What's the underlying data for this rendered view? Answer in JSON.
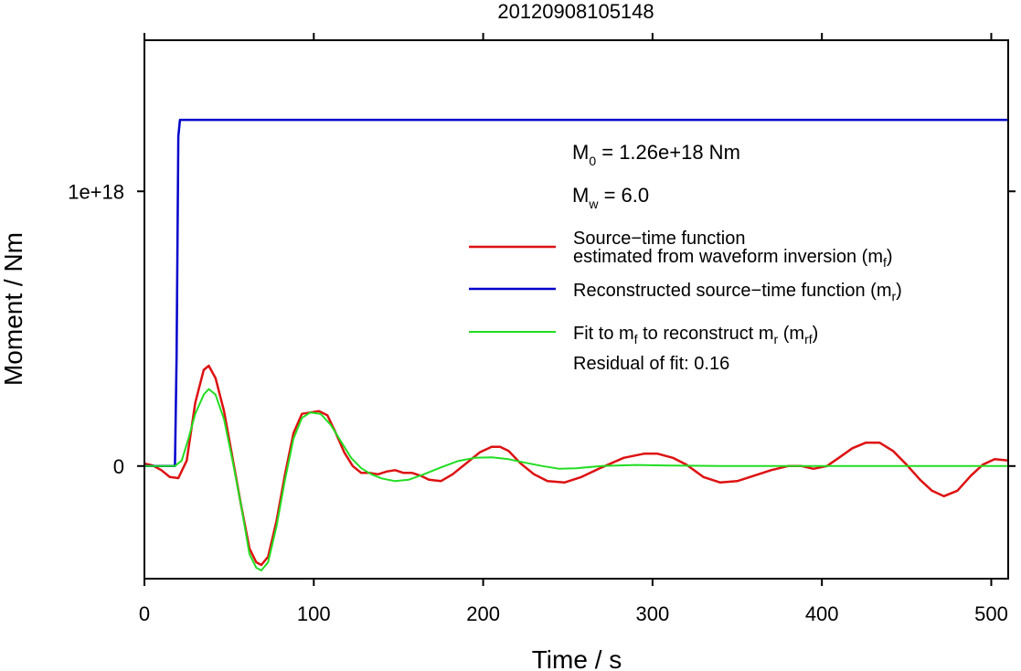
{
  "chart_data": {
    "type": "line",
    "title": "20120908105148",
    "xlabel": "Time / s",
    "ylabel": "Moment / Nm",
    "xlim": [
      0,
      510
    ],
    "ylim": [
      -4.1e+17,
      1.55e+18
    ],
    "x_ticks": [
      0,
      100,
      200,
      300,
      400,
      500
    ],
    "x_tick_labels": [
      "0",
      "100",
      "200",
      "300",
      "400",
      "500"
    ],
    "y_ticks": [
      0,
      1e+18
    ],
    "y_tick_labels": [
      "0",
      "1e+18"
    ],
    "grid": false,
    "annotations": {
      "m0": {
        "base": "M",
        "sub": "0",
        "text": " = 1.26e+18 Nm"
      },
      "mw": {
        "base": "M",
        "sub": "w",
        "text": " = 6.0"
      },
      "residual": "Residual of fit: 0.16"
    },
    "legend": {
      "placement": "right",
      "entries": [
        {
          "color": "#dd1111",
          "line1": "Source−time function",
          "line2": "estimated from waveform inversion (m",
          "sub": "f",
          "tail": ")"
        },
        {
          "color": "#0000cc",
          "line1": "Reconstructed source−time function (m",
          "sub": "r",
          "tail": ")"
        },
        {
          "color": "#22dd22",
          "line1": "Fit to m",
          "sub": "f",
          "mid": " to reconstruct m",
          "sub2": "r",
          "mid2": " (m",
          "sub3": "rf",
          "tail": ")"
        }
      ]
    },
    "series": [
      {
        "color": "#dd1111",
        "x": [
          0,
          5,
          10,
          15,
          20,
          25,
          30,
          35,
          38,
          42,
          47,
          52,
          57,
          62,
          66,
          69,
          73,
          78,
          83,
          88,
          93,
          98,
          103,
          108,
          113,
          118,
          123,
          128,
          133,
          138,
          143,
          148,
          153,
          158,
          163,
          168,
          175,
          182,
          190,
          198,
          205,
          210,
          215,
          222,
          230,
          238,
          248,
          258,
          270,
          283,
          295,
          303,
          312,
          320,
          330,
          340,
          350,
          360,
          370,
          380,
          388,
          395,
          403,
          410,
          418,
          426,
          434,
          442,
          450,
          458,
          465,
          472,
          480,
          488,
          495,
          502,
          510
        ],
        "y": [
          9000000000000000.0,
          2000000000000000.0,
          -1.5e+16,
          -4e+16,
          -4.4e+16,
          2e+16,
          2.3e+17,
          3.5e+17,
          3.65e+17,
          3.2e+17,
          2e+17,
          3e+16,
          -1.4e+17,
          -3e+17,
          -3.5e+17,
          -3.6e+17,
          -3.3e+17,
          -2e+17,
          -3e+16,
          1.2e+17,
          1.9e+17,
          1.95e+17,
          2e+17,
          1.85e+17,
          1.2e+17,
          5e+16,
          0.0,
          -2.5e+16,
          -2.5e+16,
          -3e+16,
          -2e+16,
          -1.5e+16,
          -2.5e+16,
          -2.5e+16,
          -3.5e+16,
          -5e+16,
          -5.5e+16,
          -3e+16,
          1e+16,
          5e+16,
          7e+16,
          7e+16,
          5.5e+16,
          1e+16,
          -3e+16,
          -5.5e+16,
          -6e+16,
          -4e+16,
          -5000000000000000.0,
          3e+16,
          4.5e+16,
          4.5e+16,
          3e+16,
          5000000000000000.0,
          -4e+16,
          -6e+16,
          -5.5e+16,
          -3.5e+16,
          -1.5e+16,
          0.0,
          0.0,
          -1e+16,
          0.0,
          3e+16,
          6.5e+16,
          8.5e+16,
          8.5e+16,
          5.5e+16,
          5000000000000000.0,
          -5e+16,
          -9e+16,
          -1.1e+17,
          -9e+16,
          -3.5e+16,
          5000000000000000.0,
          2.5e+16,
          2e+16
        ]
      },
      {
        "color": "#0000cc",
        "x": [
          0,
          18,
          19,
          20,
          21,
          510
        ],
        "y": [
          0,
          0,
          4e+17,
          1.2e+18,
          1.26e+18,
          1.26e+18
        ]
      },
      {
        "color": "#22dd22",
        "x": [
          0,
          10,
          18,
          22,
          26,
          30,
          35,
          38,
          42,
          47,
          52,
          57,
          62,
          66,
          69,
          73,
          78,
          83,
          88,
          93,
          98,
          104,
          110,
          116,
          122,
          128,
          134,
          140,
          148,
          156,
          165,
          175,
          185,
          195,
          205,
          215,
          225,
          235,
          245,
          255,
          270,
          290,
          310,
          340,
          380,
          420,
          470,
          510
        ],
        "y": [
          0,
          0,
          0,
          2e+16,
          1e+17,
          1.9e+17,
          2.6e+17,
          2.8e+17,
          2.6e+17,
          1.7e+17,
          2e+16,
          -1.4e+17,
          -3.2e+17,
          -3.7e+17,
          -3.8e+17,
          -3.5e+17,
          -2.2e+17,
          -5e+16,
          1e+17,
          1.75e+17,
          1.95e+17,
          1.9e+17,
          1.5e+17,
          9e+16,
          3e+16,
          -8000000000000000.0,
          -3e+16,
          -4.5e+16,
          -5.5e+16,
          -5e+16,
          -3e+16,
          -5000000000000000.0,
          1.8e+16,
          3e+16,
          3.2e+16,
          2.5e+16,
          1.2e+16,
          0.0,
          -1e+16,
          -8000000000000000.0,
          0.0,
          4000000000000000.0,
          2000000000000000.0,
          0.0,
          0.0,
          0.0,
          0.0,
          0.0
        ]
      }
    ]
  }
}
